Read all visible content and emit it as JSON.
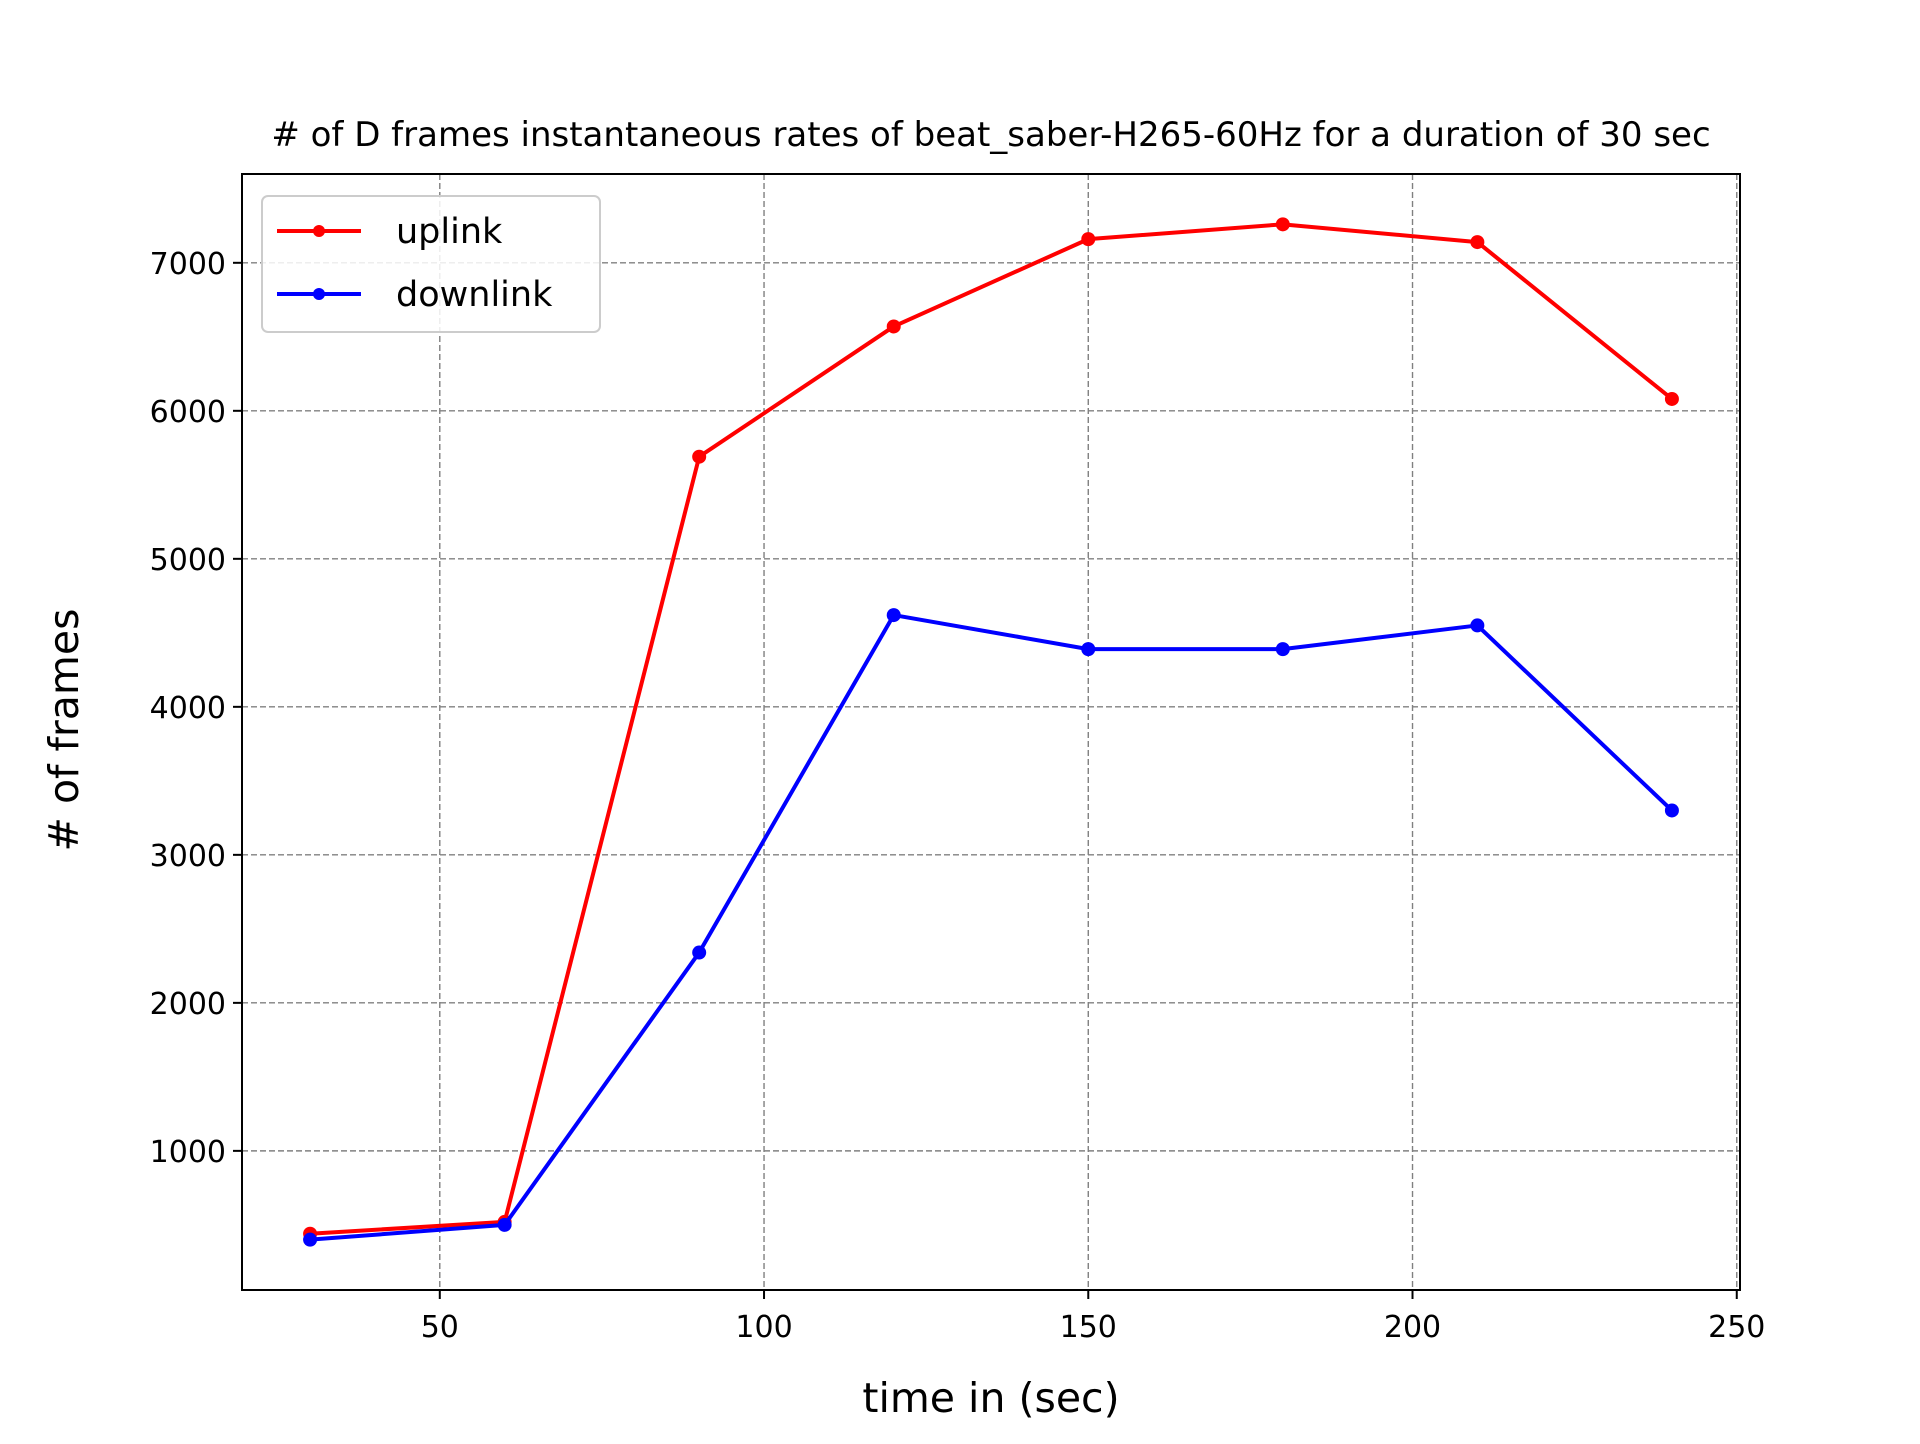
{
  "chart_data": {
    "type": "line",
    "title": "# of D frames instantaneous rates of beat_saber-H265-60Hz for a duration of 30 sec",
    "xlabel": "time in (sec)",
    "ylabel": "# of frames",
    "x": [
      30,
      60,
      90,
      120,
      150,
      180,
      210,
      240
    ],
    "series": [
      {
        "name": "uplink",
        "color": "#ff0000",
        "values": [
          440,
          520,
          5690,
          6570,
          7160,
          7260,
          7140,
          6080
        ]
      },
      {
        "name": "downlink",
        "color": "#0000ff",
        "values": [
          400,
          500,
          2340,
          4620,
          4390,
          4390,
          4550,
          3300
        ]
      }
    ],
    "xlim": [
      19.5,
      250.5
    ],
    "ylim": [
      60,
      7600
    ],
    "xticks": [
      50,
      100,
      150,
      200,
      250
    ],
    "yticks": [
      1000,
      2000,
      3000,
      4000,
      5000,
      6000,
      7000
    ],
    "grid": true,
    "legend_position": "upper-left",
    "marker": "circle"
  }
}
